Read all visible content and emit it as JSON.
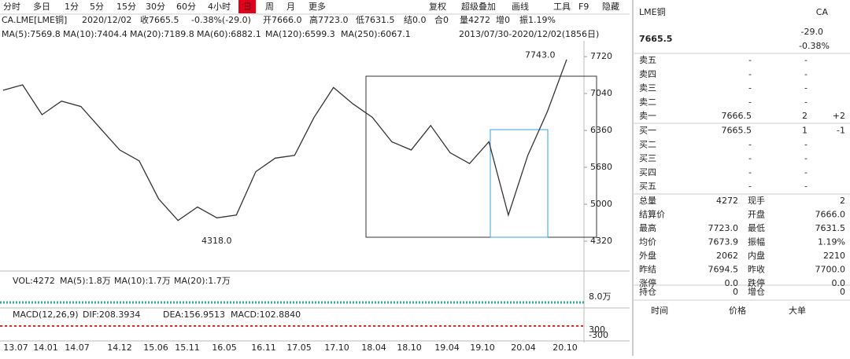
{
  "toolbar": {
    "periods": [
      "分时",
      "多日",
      "1分",
      "5分",
      "15分",
      "30分",
      "60分",
      "4小时",
      "日",
      "周",
      "月",
      "更多"
    ],
    "tools": [
      "复权",
      "超级叠加",
      "画线",
      "工具",
      "F9",
      "隐藏"
    ]
  },
  "info": {
    "symbol": "CA.LME[LME铜]",
    "date": "2020/12/02",
    "fields": [
      "收7665.5",
      "-0.38%(-29.0)",
      "开7666.0",
      "高7723.0",
      "低7631.5",
      "结0.0",
      "合0",
      "量4272",
      "增0",
      "振1.19%"
    ]
  },
  "ma": [
    "MA(5):7569.8",
    "MA(10):7404.4",
    "MA(20):7189.8",
    "MA(60):6882.1",
    "MA(120):6599.3",
    "MA(250):6067.1"
  ],
  "range": "2013/07/30-2020/12/02(1856日)",
  "chart_data": {
    "type": "line",
    "color": "#333333",
    "values": [
      7100,
      7200,
      6650,
      6900,
      6800,
      6400,
      6000,
      5800,
      5100,
      4700,
      4950,
      4750,
      4800,
      5600,
      5850,
      5900,
      6600,
      7150,
      6850,
      6600,
      6150,
      6000,
      6450,
      5950,
      5750,
      6150,
      4800,
      5900,
      6700,
      7665.5
    ],
    "ylim": [
      3770,
      8010
    ],
    "yticks": [
      4320,
      5000,
      5680,
      6360,
      7040,
      7720
    ],
    "annotations": [
      {
        "value": 7743,
        "label": "7743.0"
      },
      {
        "value": 4318,
        "label": "4318.0"
      }
    ],
    "xtick_labels": [
      "13.07",
      "14.01",
      "14.07",
      "14.12",
      "15.06",
      "15.11",
      "16.05",
      "16.11",
      "17.05",
      "17.10",
      "18.04",
      "18.10",
      "19.04",
      "19.10",
      "20.04",
      "20.10"
    ]
  },
  "volume": {
    "label": "VOL:4272",
    "ma": [
      "MA(5):1.8万",
      "MA(10):1.7万",
      "MA(20):1.7万"
    ],
    "axis": "8.0万"
  },
  "macd": {
    "label": "MACD(12,26,9)",
    "items": [
      "DIF:208.3934",
      "DEA:156.9513",
      "MACD:102.8840"
    ],
    "axis": [
      "300",
      "-300"
    ]
  },
  "quote": {
    "name": "LME铜",
    "code": "CA",
    "price": "7665.5",
    "change": "-29.0",
    "pct": "-0.38%",
    "book": [
      [
        "卖五",
        "-",
        "-"
      ],
      [
        "卖四",
        "-",
        "-"
      ],
      [
        "卖三",
        "-",
        "-"
      ],
      [
        "卖二",
        "-",
        "-"
      ],
      [
        "卖一",
        "7666.5",
        "2",
        "+2"
      ],
      [
        "买一",
        "7665.5",
        "1",
        "-1"
      ],
      [
        "买二",
        "-",
        "-"
      ],
      [
        "买三",
        "-",
        "-"
      ],
      [
        "买四",
        "-",
        "-"
      ],
      [
        "买五",
        "-",
        "-"
      ]
    ],
    "stats": [
      [
        "总量",
        "4272",
        "现手",
        "2"
      ],
      [
        "结算价",
        null,
        "开盘",
        "7666.0"
      ],
      [
        "最高",
        "7723.0",
        "最低",
        "7631.5"
      ],
      [
        "均价",
        "7673.9",
        "振幅",
        "1.19%"
      ],
      [
        "外盘",
        "2062",
        "内盘",
        "2210"
      ],
      [
        "昨结",
        "7694.5",
        "昨收",
        "7700.0"
      ],
      [
        "涨停",
        "0.0",
        "跌停",
        "0.0"
      ],
      [
        "持仓",
        "0",
        "增仓",
        "0"
      ]
    ],
    "footer": [
      "时间",
      "价格",
      "大单"
    ]
  }
}
